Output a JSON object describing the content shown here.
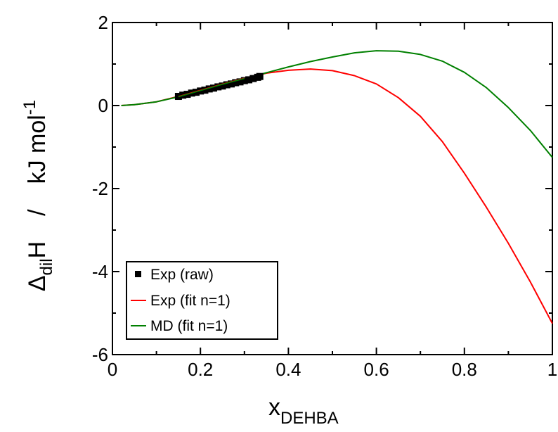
{
  "chart_data": {
    "type": "line",
    "title": "",
    "xlabel": {
      "main": "x",
      "sub": "DEHBA"
    },
    "ylabel": {
      "delta": "Δ",
      "sub": "dil",
      "main": "H",
      "slash": "/",
      "unit": "kJ mol",
      "sup": "-1"
    },
    "xlim": [
      0,
      1
    ],
    "ylim": [
      -6,
      2
    ],
    "xticks": [
      0,
      0.2,
      0.4,
      0.6,
      0.8,
      1
    ],
    "xtick_labels": [
      "0",
      "0.2",
      "0.4",
      "0.6",
      "0.8",
      "1"
    ],
    "yticks": [
      -6,
      -4,
      -2,
      0,
      2
    ],
    "ytick_labels": [
      "-6",
      "-4",
      "-2",
      "0",
      "2"
    ],
    "grid": false,
    "legend_position": "bottom-left",
    "series": [
      {
        "name": "Exp (raw)",
        "kind": "scatter",
        "color": "#000000",
        "x": [
          0.15,
          0.16,
          0.17,
          0.18,
          0.19,
          0.2,
          0.21,
          0.22,
          0.23,
          0.24,
          0.25,
          0.26,
          0.27,
          0.28,
          0.29,
          0.3,
          0.31,
          0.32,
          0.33,
          0.335
        ],
        "y": [
          0.22,
          0.25,
          0.27,
          0.3,
          0.32,
          0.35,
          0.37,
          0.4,
          0.42,
          0.45,
          0.47,
          0.5,
          0.52,
          0.55,
          0.57,
          0.6,
          0.62,
          0.65,
          0.68,
          0.7
        ]
      },
      {
        "name": "Exp (fit n=1)",
        "kind": "line",
        "color": "#ff0000",
        "x": [
          0.02,
          0.05,
          0.1,
          0.15,
          0.2,
          0.25,
          0.3,
          0.35,
          0.4,
          0.45,
          0.5,
          0.55,
          0.6,
          0.65,
          0.7,
          0.75,
          0.8,
          0.85,
          0.9,
          0.95,
          1.0
        ],
        "y": [
          0.0,
          0.02,
          0.09,
          0.22,
          0.37,
          0.52,
          0.66,
          0.78,
          0.85,
          0.88,
          0.84,
          0.72,
          0.52,
          0.19,
          -0.26,
          -0.87,
          -1.63,
          -2.45,
          -3.32,
          -4.25,
          -5.25
        ]
      },
      {
        "name": "MD (fit n=1)",
        "kind": "line",
        "color": "#008000",
        "x": [
          0.02,
          0.05,
          0.1,
          0.15,
          0.2,
          0.25,
          0.3,
          0.35,
          0.4,
          0.45,
          0.5,
          0.55,
          0.6,
          0.65,
          0.7,
          0.75,
          0.8,
          0.85,
          0.9,
          0.95,
          1.0
        ],
        "y": [
          0.0,
          0.02,
          0.09,
          0.21,
          0.36,
          0.51,
          0.65,
          0.79,
          0.93,
          1.06,
          1.17,
          1.27,
          1.32,
          1.31,
          1.23,
          1.07,
          0.8,
          0.43,
          -0.05,
          -0.6,
          -1.25
        ]
      }
    ]
  }
}
